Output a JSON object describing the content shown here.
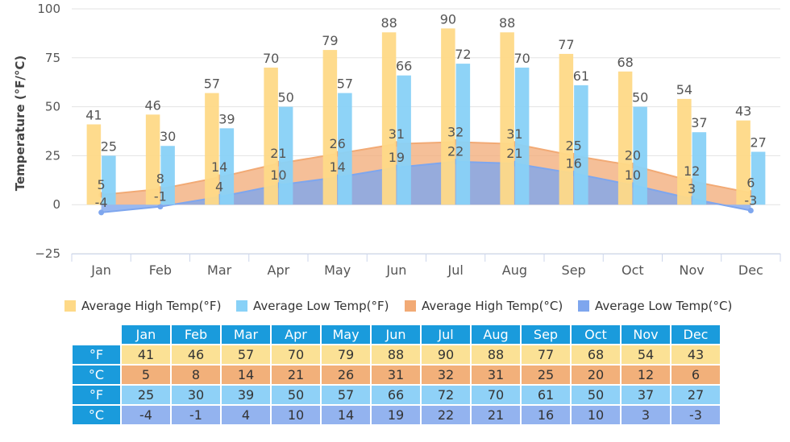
{
  "chart_data": {
    "type": "bar",
    "title": "",
    "xlabel": "",
    "ylabel": "Temperature (°F/°C)",
    "ylim": [
      -25,
      100
    ],
    "yticks": [
      -25,
      0,
      25,
      50,
      75,
      100
    ],
    "yticklabels": [
      "−25",
      "0",
      "25",
      "50",
      "75",
      "100"
    ],
    "grid": true,
    "legend_position": "bottom",
    "categories": [
      "Jan",
      "Feb",
      "Mar",
      "Apr",
      "May",
      "Jun",
      "Jul",
      "Aug",
      "Sep",
      "Oct",
      "Nov",
      "Dec"
    ],
    "series": [
      {
        "name": "Average High Temp(°F)",
        "type": "bar",
        "color": "#fed987",
        "values": [
          41,
          46,
          57,
          70,
          79,
          88,
          90,
          88,
          77,
          68,
          54,
          43
        ]
      },
      {
        "name": "Average Low Temp(°F)",
        "type": "bar",
        "color": "#88d1f7",
        "values": [
          25,
          30,
          39,
          50,
          57,
          66,
          72,
          70,
          61,
          50,
          37,
          27
        ]
      },
      {
        "name": "Average High Temp(°C)",
        "type": "area",
        "color": "#f2aa75",
        "values": [
          5,
          8,
          14,
          21,
          26,
          31,
          32,
          31,
          25,
          20,
          12,
          6
        ]
      },
      {
        "name": "Average Low Temp(°C)",
        "type": "area",
        "color": "#7ea6ee",
        "values": [
          -4,
          -1,
          4,
          10,
          14,
          19,
          22,
          21,
          16,
          10,
          3,
          -3
        ]
      }
    ]
  },
  "legend": [
    {
      "label": "Average High Temp(°F)",
      "color": "#fed987"
    },
    {
      "label": "Average Low Temp(°F)",
      "color": "#88d1f7"
    },
    {
      "label": "Average High Temp(°C)",
      "color": "#f2aa75"
    },
    {
      "label": "Average Low Temp(°C)",
      "color": "#7ea6ee"
    }
  ],
  "table": {
    "months": [
      "Jan",
      "Feb",
      "Mar",
      "Apr",
      "May",
      "Jun",
      "Jul",
      "Aug",
      "Sep",
      "Oct",
      "Nov",
      "Dec"
    ],
    "rows": [
      {
        "unit": "°F",
        "values": [
          "41",
          "46",
          "57",
          "70",
          "79",
          "88",
          "90",
          "88",
          "77",
          "68",
          "54",
          "43"
        ]
      },
      {
        "unit": "°C",
        "values": [
          "5",
          "8",
          "14",
          "21",
          "26",
          "31",
          "32",
          "31",
          "25",
          "20",
          "12",
          "6"
        ]
      },
      {
        "unit": "°F",
        "values": [
          "25",
          "30",
          "39",
          "50",
          "57",
          "66",
          "72",
          "70",
          "61",
          "50",
          "37",
          "27"
        ]
      },
      {
        "unit": "°C",
        "values": [
          "-4",
          "-1",
          "4",
          "10",
          "14",
          "19",
          "22",
          "21",
          "16",
          "10",
          "3",
          "-3"
        ]
      }
    ]
  }
}
